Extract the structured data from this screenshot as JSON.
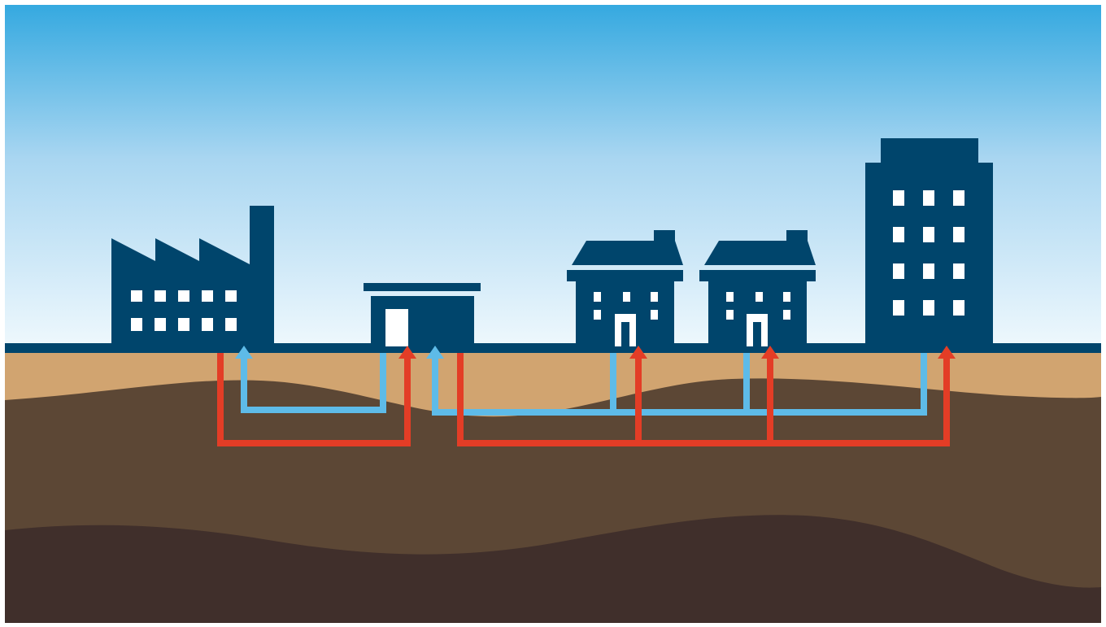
{
  "colors": {
    "sky_top": "#35a9e0",
    "sky_mid": "#a9d6f1",
    "sky_bottom": "#eef8fd",
    "building": "#00456c",
    "window": "#ffffff",
    "sand": "#d1a470",
    "soil": "#5c4735",
    "bedrock": "#402f2b",
    "pipe_warm": "#e33d26",
    "pipe_cool": "#5ebbe8",
    "frame": "#ffffff"
  },
  "scene": {
    "buildings": [
      {
        "kind": "factory",
        "icon": "factory-icon"
      },
      {
        "kind": "energy-station",
        "icon": "energy-station-icon"
      },
      {
        "kind": "house",
        "icon": "house-icon"
      },
      {
        "kind": "house",
        "icon": "house-icon"
      },
      {
        "kind": "apartment-tower",
        "icon": "apartment-tower-icon"
      }
    ],
    "networks": [
      {
        "name": "factory-loop",
        "pipes": [
          "warm-pipe",
          "cool-pipe"
        ]
      },
      {
        "name": "district-loop",
        "pipes": [
          "warm-pipe",
          "cool-pipe"
        ]
      }
    ],
    "ground_layers": [
      "sand",
      "soil",
      "bedrock"
    ]
  }
}
